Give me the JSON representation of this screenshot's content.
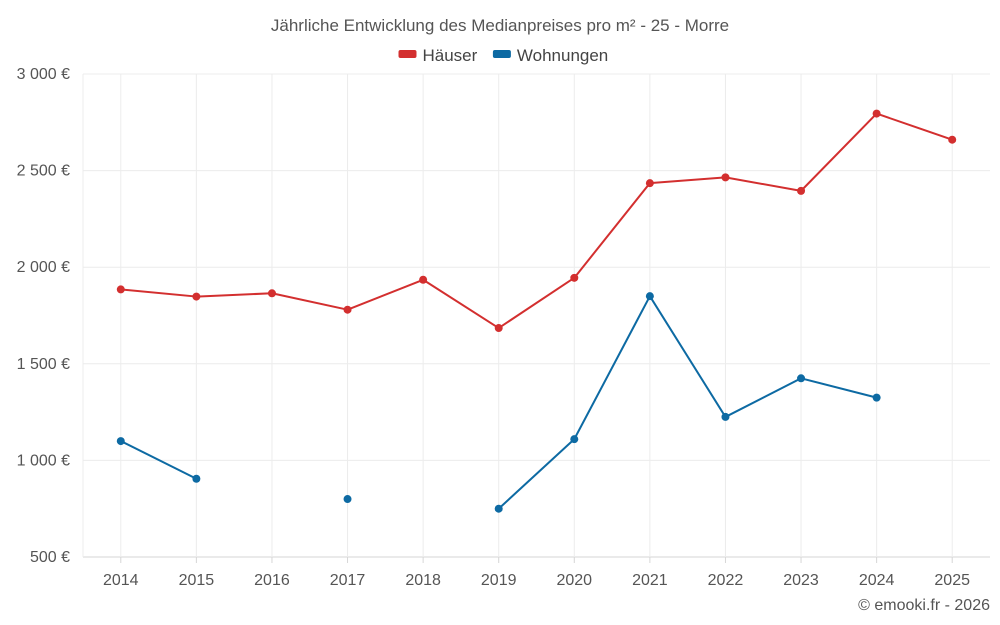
{
  "chart_data": {
    "type": "line",
    "title": "Jährliche Entwicklung des Medianpreises pro m² - 25 - Morre",
    "categories": [
      "2014",
      "2015",
      "2016",
      "2017",
      "2018",
      "2019",
      "2020",
      "2021",
      "2022",
      "2023",
      "2024",
      "2025"
    ],
    "series": [
      {
        "name": "Häuser",
        "color": "#d32f2f",
        "values": [
          1885,
          1848,
          1865,
          1780,
          1935,
          1685,
          1945,
          2435,
          2465,
          2395,
          2795,
          2660
        ]
      },
      {
        "name": "Wohnungen",
        "color": "#0d6aa3",
        "values": [
          1100,
          905,
          null,
          800,
          null,
          750,
          1110,
          1850,
          1225,
          1425,
          1325,
          null
        ]
      }
    ],
    "ylim": [
      500,
      3000
    ],
    "yticks": [
      500,
      1000,
      1500,
      2000,
      2500,
      3000
    ],
    "ytick_labels": [
      "500 €",
      "1 000 €",
      "1 500 €",
      "2 000 €",
      "2 500 €",
      "3 000 €"
    ],
    "grid": true,
    "legend_position": "top-center"
  },
  "credit": "© emooki.fr - 2026"
}
